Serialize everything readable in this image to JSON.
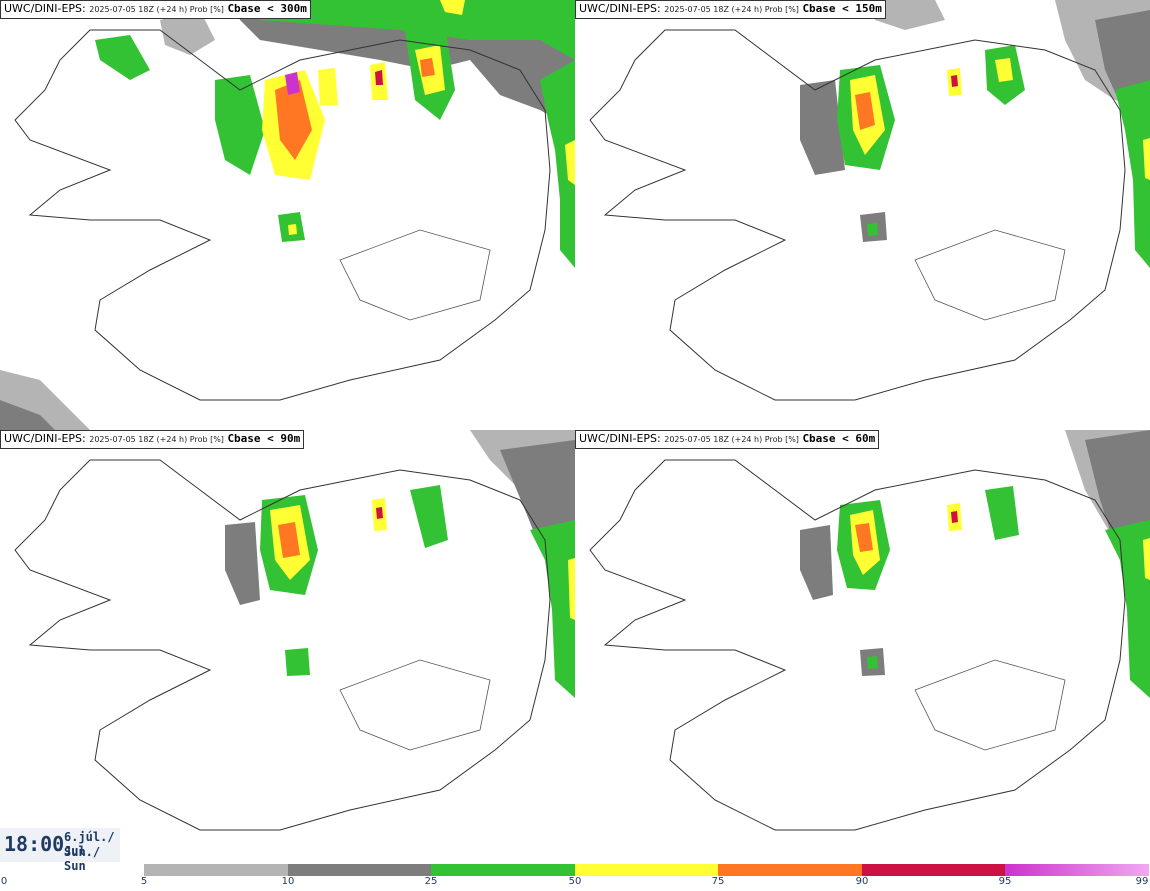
{
  "panels": [
    {
      "model": "UWC/DINI-EPS",
      "meta": "2025-07-05 18Z (+24 h) Prob [%]",
      "var": "Cbase < 300m"
    },
    {
      "model": "UWC/DINI-EPS",
      "meta": "2025-07-05 18Z (+24 h) Prob [%]",
      "var": "Cbase < 150m"
    },
    {
      "model": "UWC/DINI-EPS",
      "meta": "2025-07-05 18Z (+24 h) Prob [%]",
      "var": "Cbase < 90m"
    },
    {
      "model": "UWC/DINI-EPS",
      "meta": "2025-07-05 18Z (+24 h) Prob [%]",
      "var": "Cbase < 60m"
    }
  ],
  "time": {
    "clock": "18:00",
    "date1": "6.júl./ Jul",
    "date2": "Sun./ Sun"
  },
  "legend": {
    "ticks": [
      "0",
      "5",
      "10",
      "25",
      "50",
      "75",
      "90",
      "95",
      "99"
    ],
    "colors": {
      "p5": "#b4b4b4",
      "p10": "#7d7d7d",
      "p25": "#33c233",
      "p50": "#ffff33",
      "p75": "#ff7722",
      "p90": "#cc1144",
      "p95": "#cc33cc",
      "p99": "#f0a8f0"
    }
  }
}
